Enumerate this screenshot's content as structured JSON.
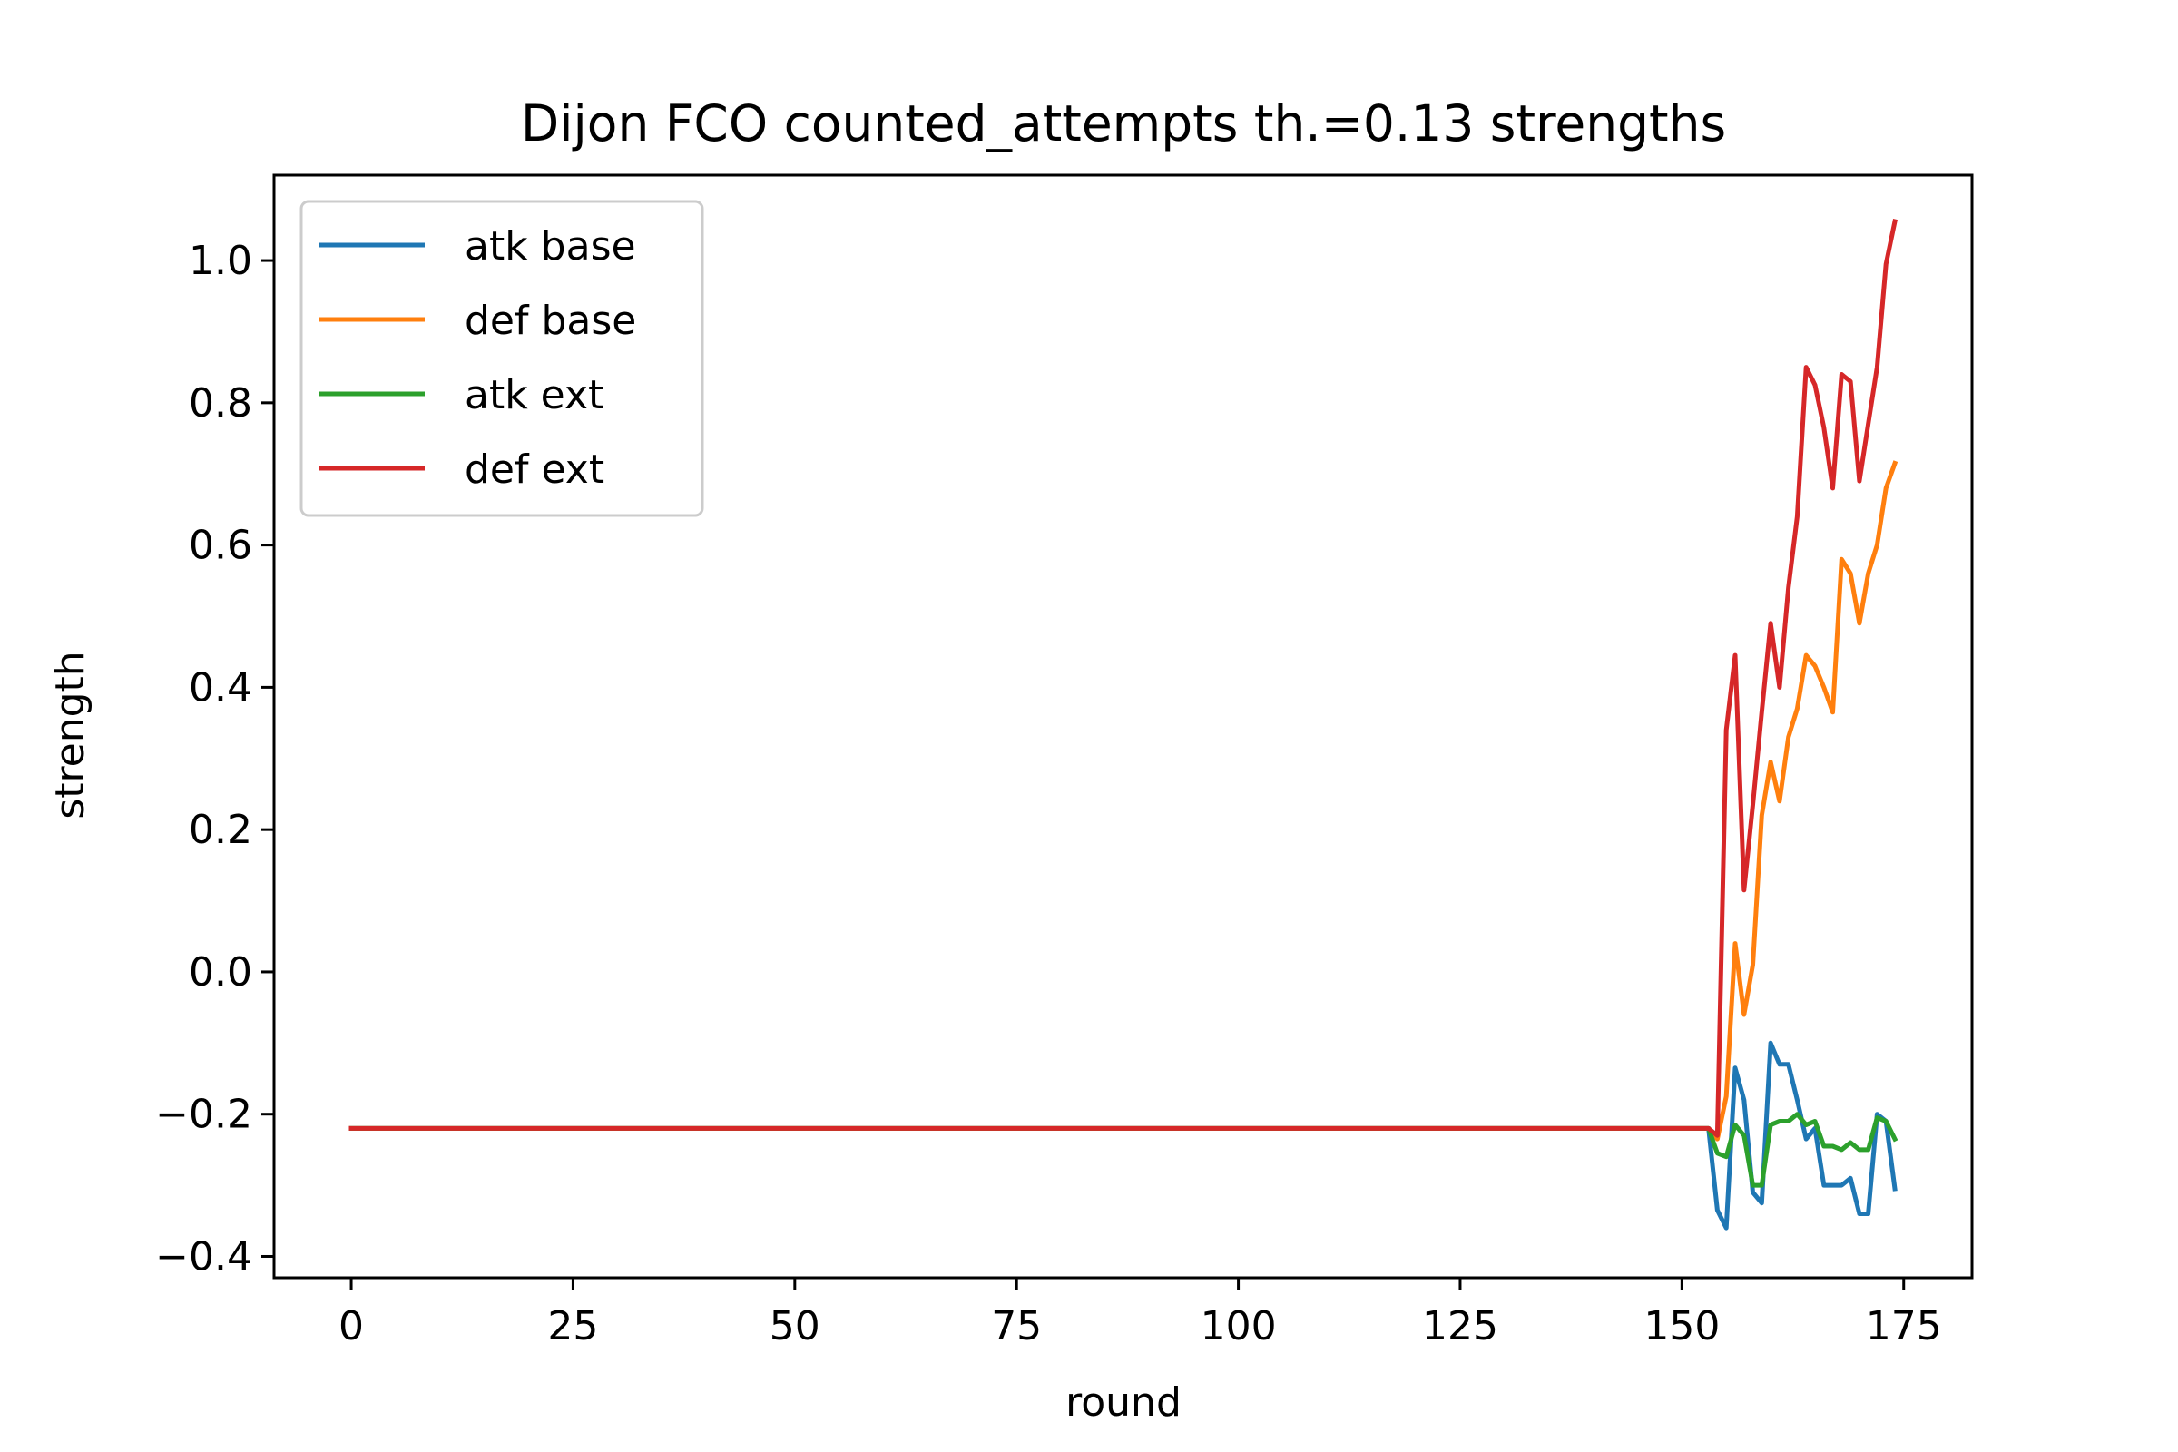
{
  "chart_data": {
    "type": "line",
    "title": "Dijon FCO counted_attempts th.=0.13 strengths",
    "xlabel": "round",
    "ylabel": "strength",
    "xlim": [
      -8.7,
      182.7
    ],
    "ylim": [
      -0.43,
      1.12
    ],
    "xticks": [
      0,
      25,
      50,
      75,
      100,
      125,
      150,
      175
    ],
    "xtick_labels": [
      "0",
      "25",
      "50",
      "75",
      "100",
      "125",
      "150",
      "175"
    ],
    "yticks": [
      -0.4,
      -0.2,
      0.0,
      0.2,
      0.4,
      0.6,
      0.8,
      1.0
    ],
    "ytick_labels": [
      "−0.4",
      "−0.2",
      "0.0",
      "0.2",
      "0.4",
      "0.6",
      "0.8",
      "1.0"
    ],
    "grid": false,
    "legend_position": "upper-left",
    "series": [
      {
        "name": "atk base",
        "color": "#1f77b4",
        "x": [
          0,
          153,
          154,
          155,
          156,
          157,
          158,
          159,
          160,
          161,
          162,
          163,
          164,
          165,
          166,
          167,
          168,
          169,
          170,
          171,
          172,
          173,
          174
        ],
        "y": [
          -0.22,
          -0.22,
          -0.335,
          -0.36,
          -0.135,
          -0.18,
          -0.31,
          -0.325,
          -0.1,
          -0.13,
          -0.13,
          -0.18,
          -0.235,
          -0.22,
          -0.3,
          -0.3,
          -0.3,
          -0.29,
          -0.34,
          -0.34,
          -0.2,
          -0.21,
          -0.305
        ]
      },
      {
        "name": "def base",
        "color": "#ff7f0e",
        "x": [
          0,
          153,
          154,
          155,
          156,
          157,
          158,
          159,
          160,
          161,
          162,
          163,
          164,
          165,
          166,
          167,
          168,
          169,
          170,
          171,
          172,
          173,
          174
        ],
        "y": [
          -0.22,
          -0.22,
          -0.235,
          -0.175,
          0.04,
          -0.06,
          0.01,
          0.22,
          0.295,
          0.24,
          0.33,
          0.37,
          0.445,
          0.43,
          0.4,
          0.365,
          0.58,
          0.56,
          0.49,
          0.56,
          0.6,
          0.68,
          0.715
        ]
      },
      {
        "name": "atk ext",
        "color": "#2ca02c",
        "x": [
          0,
          153,
          154,
          155,
          156,
          157,
          158,
          159,
          160,
          161,
          162,
          163,
          164,
          165,
          166,
          167,
          168,
          169,
          170,
          171,
          172,
          173,
          174
        ],
        "y": [
          -0.22,
          -0.22,
          -0.255,
          -0.26,
          -0.215,
          -0.23,
          -0.3,
          -0.3,
          -0.215,
          -0.21,
          -0.21,
          -0.2,
          -0.215,
          -0.21,
          -0.245,
          -0.245,
          -0.25,
          -0.24,
          -0.25,
          -0.25,
          -0.205,
          -0.21,
          -0.235
        ]
      },
      {
        "name": "def ext",
        "color": "#d62728",
        "x": [
          0,
          153,
          154,
          155,
          156,
          157,
          158,
          159,
          160,
          161,
          162,
          163,
          164,
          165,
          166,
          167,
          168,
          169,
          170,
          171,
          172,
          173,
          174
        ],
        "y": [
          -0.22,
          -0.22,
          -0.23,
          0.34,
          0.445,
          0.115,
          0.235,
          0.365,
          0.49,
          0.4,
          0.54,
          0.64,
          0.85,
          0.825,
          0.765,
          0.68,
          0.84,
          0.83,
          0.69,
          0.77,
          0.85,
          0.995,
          1.055
        ]
      }
    ]
  }
}
